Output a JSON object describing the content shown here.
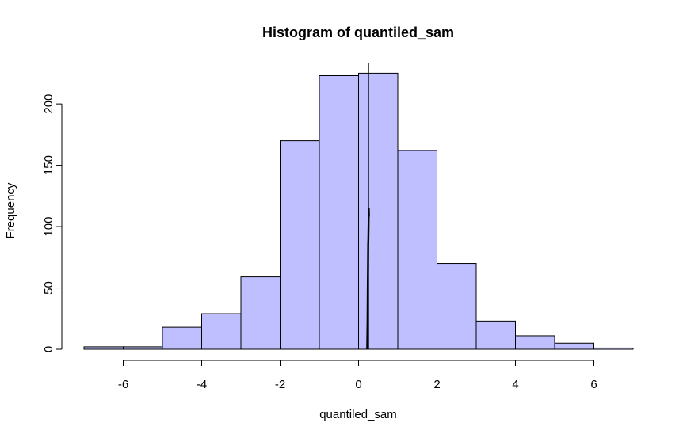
{
  "chart_data": {
    "type": "bar",
    "title": "Histogram of quantiled_sam",
    "xlabel": "quantiled_sam",
    "ylabel": "Frequency",
    "bins": [
      {
        "from": -7,
        "to": -6,
        "count": 2
      },
      {
        "from": -6,
        "to": -5,
        "count": 2
      },
      {
        "from": -5,
        "to": -4,
        "count": 18
      },
      {
        "from": -4,
        "to": -3,
        "count": 29
      },
      {
        "from": -3,
        "to": -2,
        "count": 59
      },
      {
        "from": -2,
        "to": -1,
        "count": 170
      },
      {
        "from": -1,
        "to": 0,
        "count": 223
      },
      {
        "from": 0,
        "to": 1,
        "count": 225
      },
      {
        "from": 1,
        "to": 2,
        "count": 162
      },
      {
        "from": 2,
        "to": 3,
        "count": 70
      },
      {
        "from": 3,
        "to": 4,
        "count": 23
      },
      {
        "from": 4,
        "to": 5,
        "count": 11
      },
      {
        "from": 5,
        "to": 6,
        "count": 5
      },
      {
        "from": 6,
        "to": 7,
        "count": 1
      }
    ],
    "xticks": [
      -6,
      -4,
      -2,
      0,
      2,
      4,
      6
    ],
    "yticks": [
      0,
      50,
      100,
      150,
      200
    ],
    "xlim": [
      -7,
      7
    ],
    "ylim": [
      0,
      225
    ],
    "bar_color": "#bfbfff",
    "edge_color": "#000000",
    "reference_line": {
      "x": 0.25,
      "color": "#000000"
    },
    "density_trace": {
      "color": "#000000",
      "points": [
        [
          0.22,
          0
        ],
        [
          0.23,
          25
        ],
        [
          0.235,
          50
        ],
        [
          0.24,
          65
        ],
        [
          0.245,
          85
        ],
        [
          0.25,
          90
        ],
        [
          0.255,
          100
        ],
        [
          0.26,
          115
        ],
        [
          0.265,
          108
        ]
      ]
    },
    "grid": false,
    "legend": "none"
  }
}
